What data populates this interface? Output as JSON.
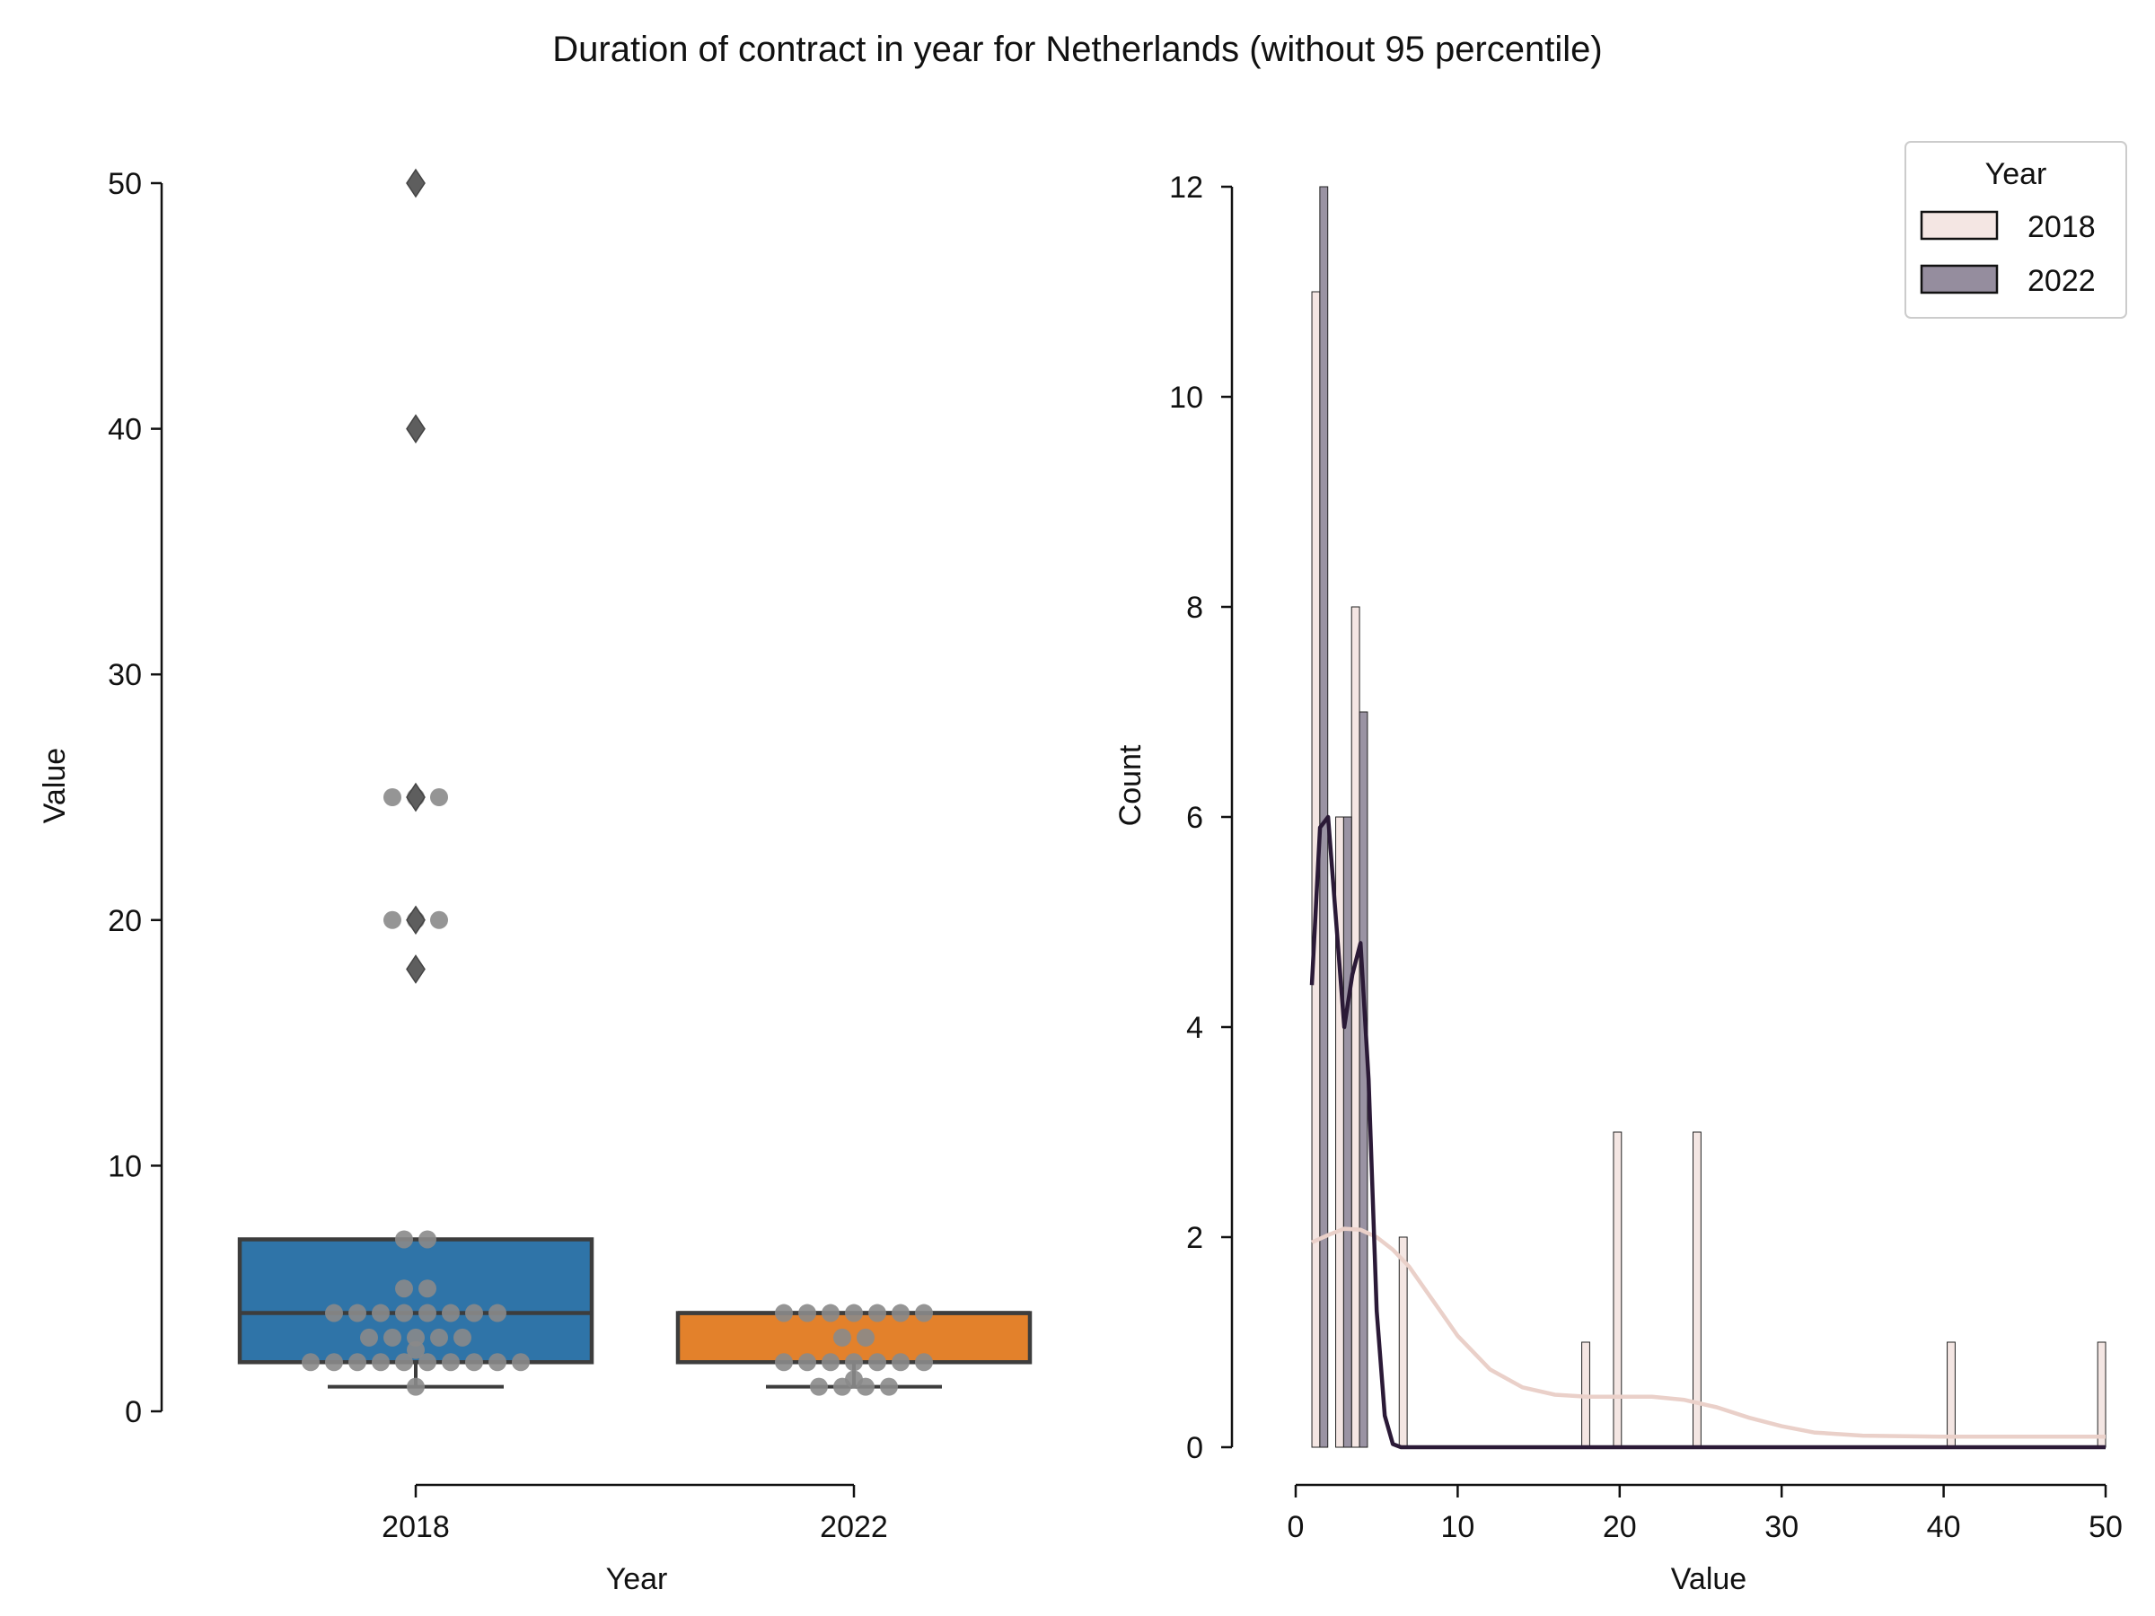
{
  "title": "Duration of contract in year for Netherlands (without 95 percentile)",
  "colors": {
    "box_2018": "#2f74a8",
    "box_2022": "#e3812b",
    "box_edge": "#3d3d3d",
    "swarm": "#8a8a8a",
    "flier": "#5e5e5e",
    "hist_2018_fill": "#f4e6e3",
    "hist_2022_fill": "#958d9e",
    "kde_2018": "#ead0c9",
    "kde_2022": "#2b1a37",
    "axis": "#111111"
  },
  "chart_data": [
    {
      "type": "box",
      "xlabel": "Year",
      "ylabel": "Value",
      "categories": [
        "2018",
        "2022"
      ],
      "ylim": [
        0,
        50
      ],
      "yticks": [
        0,
        10,
        20,
        30,
        40,
        50
      ],
      "boxes": [
        {
          "category": "2018",
          "whisker_low": 1,
          "q1": 2,
          "median": 4,
          "q3": 7,
          "whisker_high": 7,
          "fliers": [
            18,
            20,
            25,
            40,
            50
          ]
        },
        {
          "category": "2022",
          "whisker_low": 1,
          "q1": 2,
          "median": 4,
          "q3": 4,
          "whisker_high": 4,
          "fliers": []
        }
      ],
      "swarm": [
        {
          "category": "2018",
          "values": [
            1,
            2,
            2,
            2,
            2,
            2,
            2,
            2,
            2,
            2,
            2,
            2.5,
            3,
            3,
            3,
            3,
            3,
            4,
            4,
            4,
            4,
            4,
            4,
            4,
            4,
            5,
            5,
            7,
            7,
            20,
            20,
            20,
            25,
            25,
            25
          ]
        },
        {
          "category": "2022",
          "values": [
            1,
            1,
            1,
            1,
            1.3,
            2,
            2,
            2,
            2,
            2,
            2,
            2,
            3,
            3,
            4,
            4,
            4,
            4,
            4,
            4,
            4
          ]
        }
      ]
    },
    {
      "type": "histogram",
      "xlabel": "Value",
      "ylabel": "Count",
      "xlim": [
        0,
        50
      ],
      "ylim": [
        0,
        12
      ],
      "xticks": [
        0,
        10,
        20,
        30,
        40,
        50
      ],
      "yticks": [
        0,
        2,
        4,
        6,
        8,
        10,
        12
      ],
      "legend": {
        "title": "Year",
        "position": "top-right"
      },
      "bin_width": 0.49,
      "series": [
        {
          "name": "2018",
          "bins": [
            {
              "x": 1.0,
              "count": 11
            },
            {
              "x": 2.47,
              "count": 6
            },
            {
              "x": 3.45,
              "count": 8
            },
            {
              "x": 6.39,
              "count": 2
            },
            {
              "x": 17.66,
              "count": 1
            },
            {
              "x": 19.62,
              "count": 3
            },
            {
              "x": 24.53,
              "count": 3
            },
            {
              "x": 40.22,
              "count": 1
            },
            {
              "x": 49.51,
              "count": 1
            }
          ]
        },
        {
          "name": "2022",
          "bins": [
            {
              "x": 1.49,
              "count": 12
            },
            {
              "x": 2.47,
              "count": 0
            },
            {
              "x": 2.96,
              "count": 6
            },
            {
              "x": 3.94,
              "count": 7
            }
          ]
        }
      ],
      "kde": [
        {
          "name": "2018",
          "x": [
            1,
            2,
            3,
            4,
            5,
            6,
            7,
            8,
            9,
            10,
            12,
            14,
            16,
            18,
            20,
            22,
            24,
            26,
            28,
            30,
            32,
            35,
            40,
            45,
            50
          ],
          "y": [
            1.95,
            2.02,
            2.08,
            2.07,
            2.0,
            1.88,
            1.72,
            1.5,
            1.28,
            1.06,
            0.74,
            0.57,
            0.5,
            0.48,
            0.48,
            0.48,
            0.45,
            0.38,
            0.28,
            0.2,
            0.14,
            0.11,
            0.1,
            0.1,
            0.1
          ]
        },
        {
          "name": "2022",
          "x": [
            1,
            1.5,
            2,
            2.5,
            3,
            3.5,
            4,
            4.5,
            5,
            5.5,
            6,
            6.5,
            7,
            10,
            20,
            30,
            40,
            50
          ],
          "y": [
            4.4,
            5.9,
            6.0,
            5.0,
            4.0,
            4.5,
            4.8,
            3.5,
            1.3,
            0.3,
            0.03,
            0,
            0,
            0,
            0,
            0,
            0,
            0
          ]
        }
      ]
    }
  ]
}
